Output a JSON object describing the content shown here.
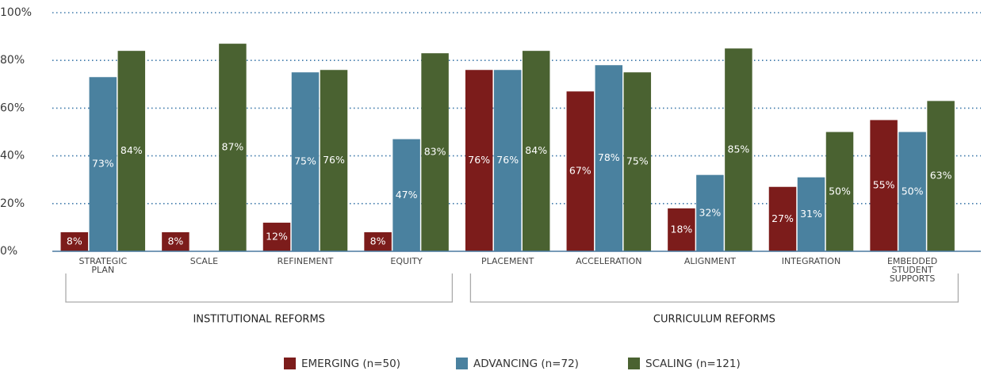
{
  "chart_data": {
    "type": "bar",
    "categories": [
      "STRATEGIC PLAN",
      "SCALE",
      "REFINEMENT",
      "EQUITY",
      "PLACEMENT",
      "ACCELERATION",
      "ALIGNMENT",
      "INTEGRATION",
      "EMBEDDED STUDENT SUPPORTS"
    ],
    "series": [
      {
        "name": "EMERGING (n=50)",
        "color": "#7c1c1b",
        "values": [
          8,
          8,
          12,
          8,
          76,
          67,
          18,
          27,
          55
        ],
        "value_labels": [
          "8%",
          "8%",
          "12%",
          "8%",
          "76%",
          "67%",
          "18%",
          "27%",
          "55%"
        ]
      },
      {
        "name": "ADVANCING (n=72)",
        "color": "#4a819f",
        "values": [
          73,
          null,
          75,
          47,
          76,
          78,
          32,
          31,
          50
        ],
        "value_labels": [
          "73%",
          null,
          "75%",
          "47%",
          "76%",
          "78%",
          "32%",
          "31%",
          "50%"
        ]
      },
      {
        "name": "SCALING (n=121)",
        "color": "#4a6231",
        "values": [
          84,
          87,
          76,
          83,
          84,
          75,
          85,
          50,
          63
        ],
        "value_labels": [
          "84%",
          "87%",
          "76%",
          "83%",
          "84%",
          "75%",
          "85%",
          "50%",
          "63%"
        ]
      }
    ],
    "groups": [
      {
        "label": "INSTITUTIONAL REFORMS",
        "size": 4
      },
      {
        "label": "CURRICULUM REFORMS",
        "size": 5
      }
    ],
    "ylim": [
      0,
      100
    ],
    "yticks": [
      {
        "value": 0,
        "label": "0%"
      },
      {
        "value": 20,
        "label": "20%"
      },
      {
        "value": 40,
        "label": "40%"
      },
      {
        "value": 60,
        "label": "60%"
      },
      {
        "value": 80,
        "label": "80%"
      },
      {
        "value": 100,
        "label": "100%"
      }
    ],
    "grid": true,
    "legend": "bottom"
  }
}
